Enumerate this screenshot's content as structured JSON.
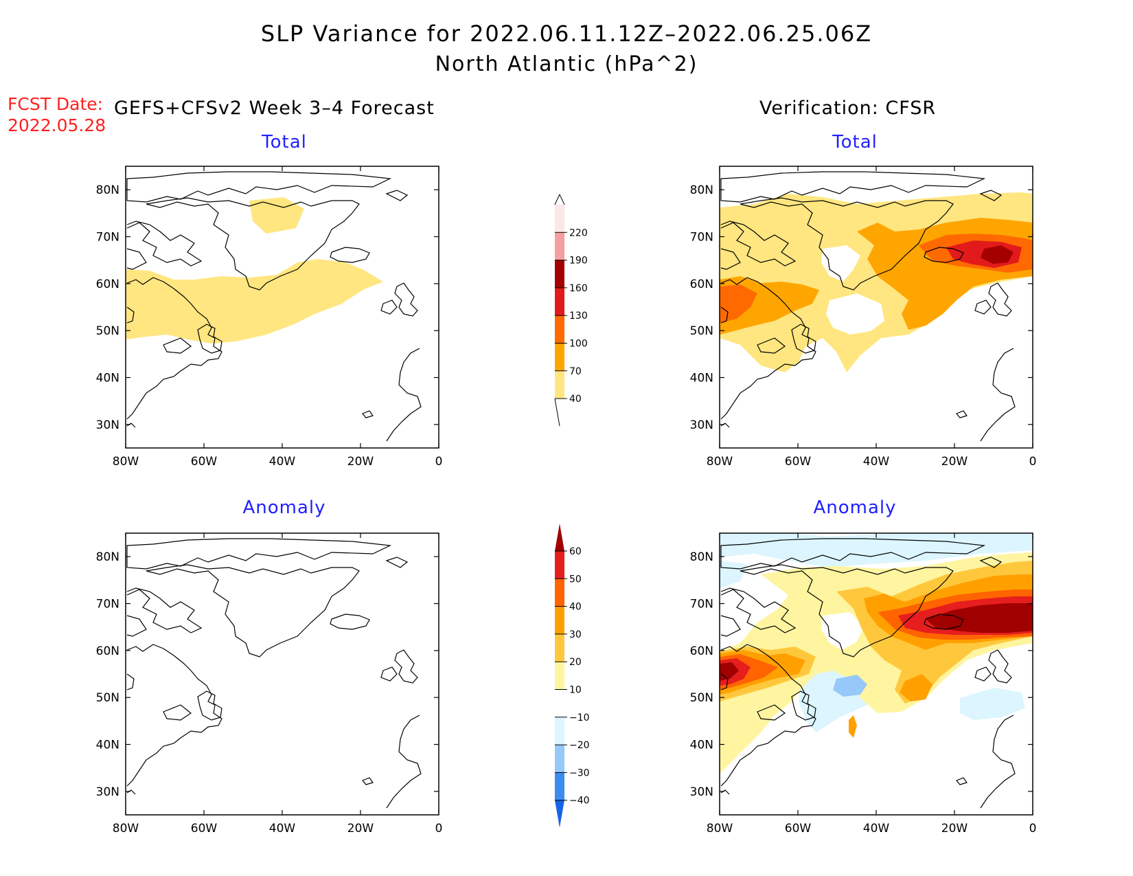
{
  "figure": {
    "title_line1": "SLP Variance for 2022.06.11.12Z–2022.06.25.06Z",
    "title_line2": "North Atlantic (hPa^2)",
    "fcst_label": "FCST Date:",
    "fcst_date": "2022.05.28",
    "left_header": "GEFS+CFSv2 Week 3–4 Forecast",
    "right_header": "Verification: CFSR"
  },
  "panels": {
    "total_left": {
      "title": "Total"
    },
    "total_right": {
      "title": "Total"
    },
    "anom_left": {
      "title": "Anomaly"
    },
    "anom_right": {
      "title": "Anomaly"
    }
  },
  "axes": {
    "lon_labels": [
      "80W",
      "60W",
      "40W",
      "20W",
      "0"
    ],
    "lat_labels": [
      "80N",
      "70N",
      "60N",
      "50N",
      "40N",
      "30N"
    ]
  },
  "colorbars": {
    "total": {
      "labels": [
        "40",
        "70",
        "100",
        "130",
        "160",
        "190",
        "220"
      ],
      "colors": [
        "#ffe680",
        "#ffa500",
        "#ff6a00",
        "#e31a1c",
        "#a50000",
        "#f4a0a0",
        "#fde6e6"
      ]
    },
    "anomaly": {
      "labels": [
        "−40",
        "−30",
        "−20",
        "−10",
        "10",
        "20",
        "30",
        "40",
        "50",
        "60"
      ],
      "colors": [
        "#1464e6",
        "#3c8cf0",
        "#96c8fa",
        "#dcf5ff",
        "#ffffff",
        "#fff5a0",
        "#ffc83c",
        "#ffa000",
        "#ff6400",
        "#e61e1e",
        "#a00000"
      ]
    }
  }
}
